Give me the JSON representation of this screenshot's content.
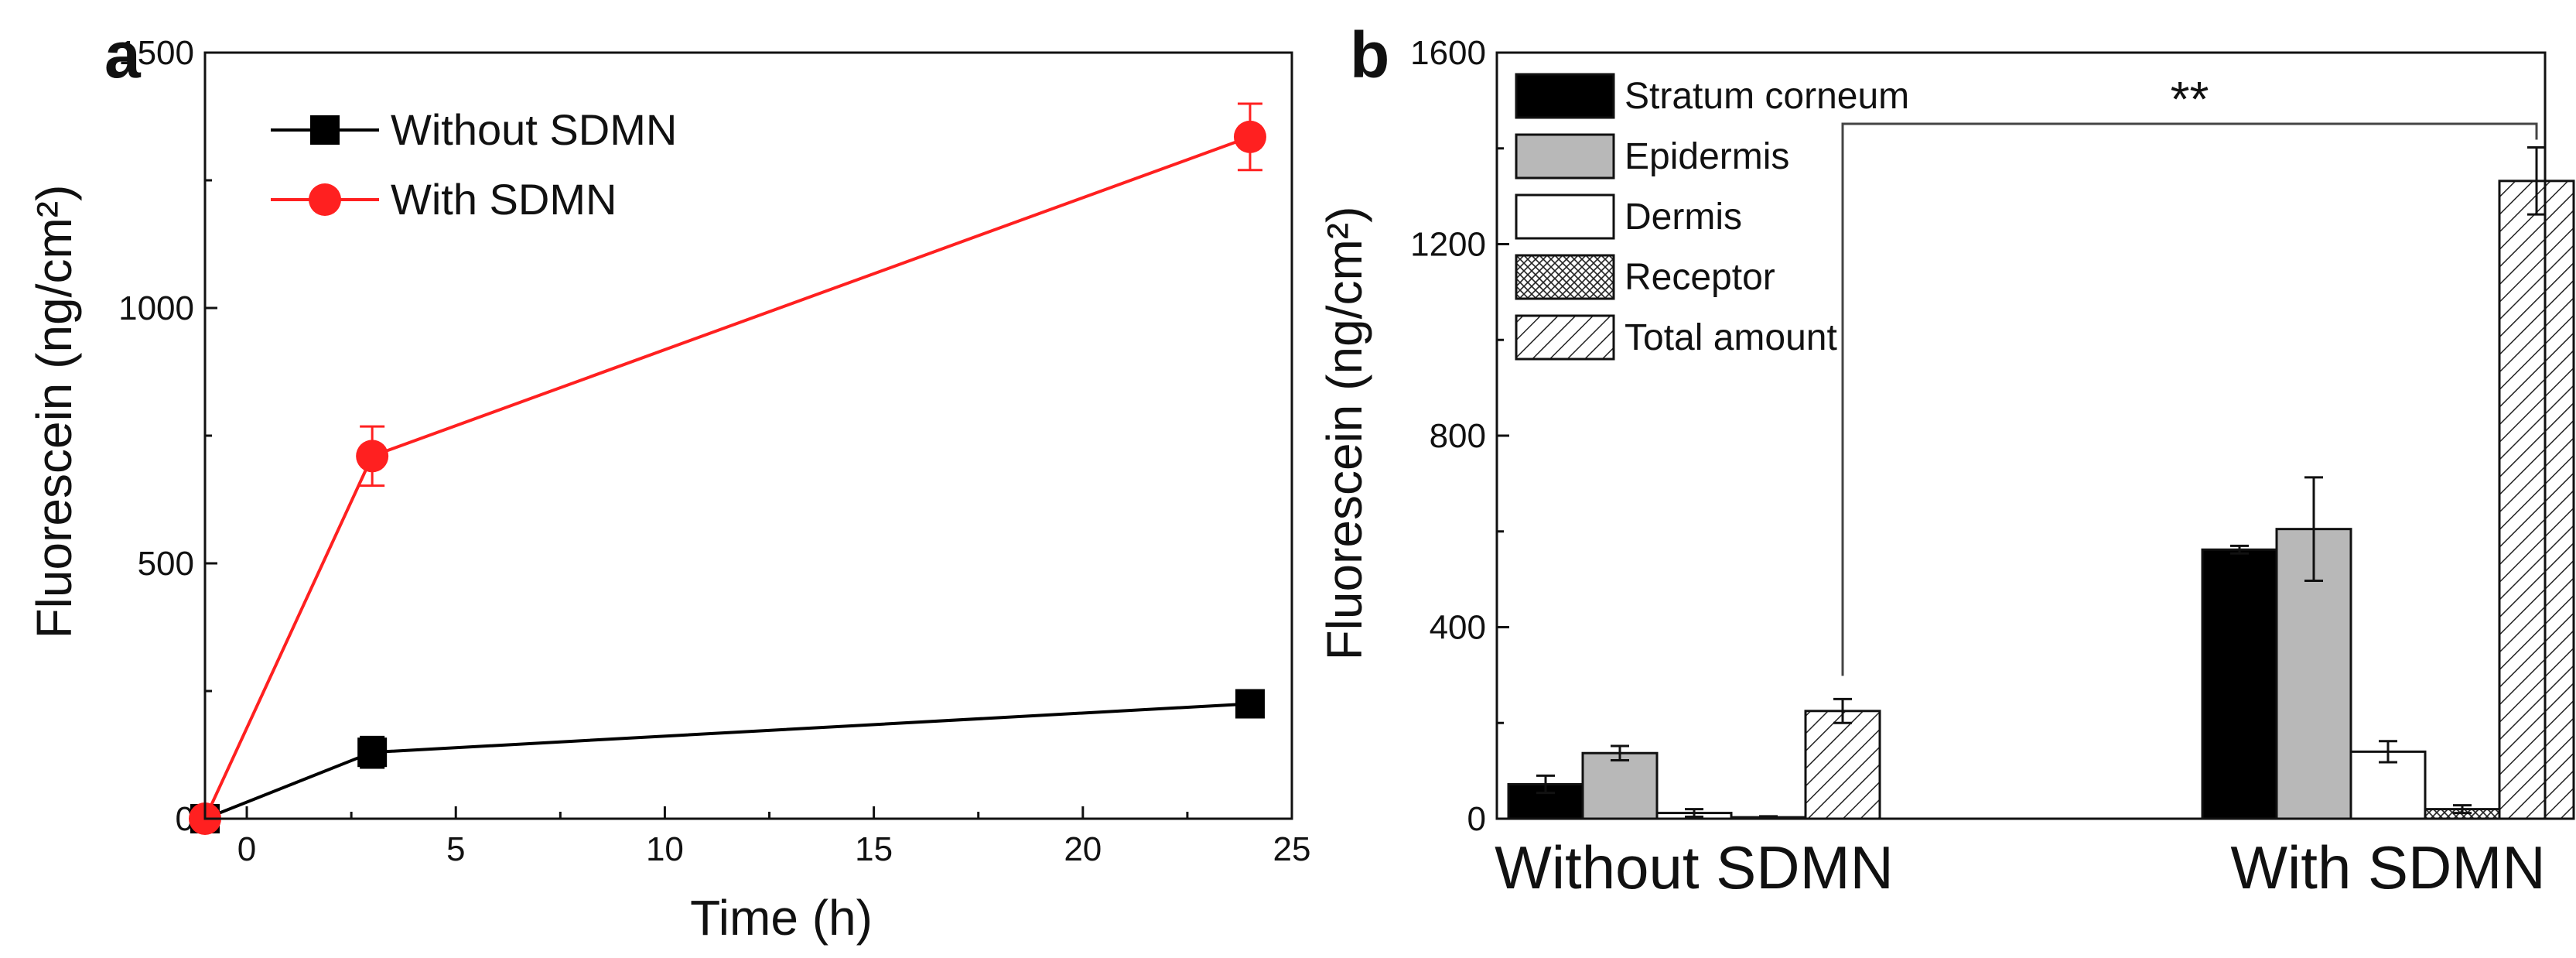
{
  "chart_data": [
    {
      "panel_label": "a",
      "type": "line",
      "xlabel": "Time (h)",
      "ylabel": "Fluorescein (ng/cm²)",
      "xlim": [
        -1,
        25
      ],
      "ylim": [
        0,
        1500
      ],
      "x_ticks": [
        "0",
        "5",
        "10",
        "15",
        "20",
        "25"
      ],
      "y_ticks": [
        "0",
        "500",
        "1000",
        "1500"
      ],
      "legend_position": "top-left",
      "series": [
        {
          "name": "Without SDMN",
          "color": "#000000",
          "marker": "square",
          "x": [
            -1,
            3,
            24
          ],
          "y": [
            0,
            130,
            225
          ],
          "err": [
            0,
            30,
            25
          ]
        },
        {
          "name": "With SDMN",
          "color": "#ff2020",
          "marker": "circle",
          "x": [
            -1,
            3,
            24
          ],
          "y": [
            0,
            710,
            1335
          ],
          "err": [
            0,
            58,
            65
          ]
        }
      ]
    },
    {
      "panel_label": "b",
      "type": "bar",
      "xlabel": "",
      "ylabel": "Fluorescein (ng/cm²)",
      "ylim": [
        0,
        1600
      ],
      "y_ticks": [
        "0",
        "400",
        "800",
        "1200",
        "1600"
      ],
      "categories": [
        "Without SDMN",
        "With SDMN"
      ],
      "legend_position": "top-left",
      "series": [
        {
          "name": "Stratum corneum",
          "fill": "solid-black",
          "values": [
            72,
            562
          ],
          "err": [
            18,
            8
          ]
        },
        {
          "name": "Epidermis",
          "fill": "solid-gray",
          "values": [
            137,
            605
          ],
          "err": [
            15,
            108
          ]
        },
        {
          "name": "Dermis",
          "fill": "white",
          "values": [
            12,
            140
          ],
          "err": [
            8,
            22
          ]
        },
        {
          "name": "Receptor",
          "fill": "crosshatch",
          "values": [
            3,
            20
          ],
          "err": [
            2,
            8
          ]
        },
        {
          "name": "Total amount",
          "fill": "diagonal-hatch",
          "values": [
            225,
            1332
          ],
          "err": [
            25,
            70
          ]
        }
      ],
      "annotations": [
        {
          "text": "**",
          "between": [
            "Without SDMN / Total amount",
            "With SDMN / Total amount"
          ]
        }
      ]
    }
  ]
}
